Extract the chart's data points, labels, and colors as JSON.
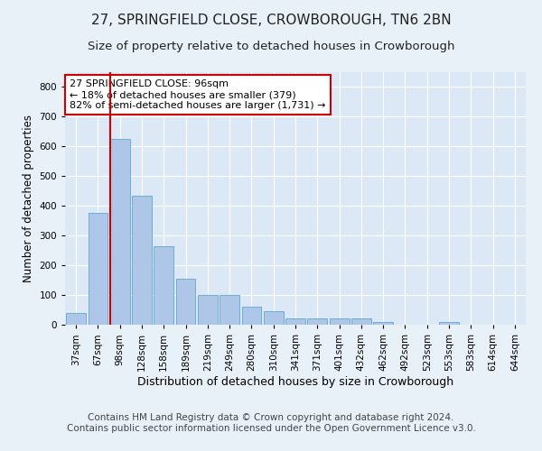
{
  "title": "27, SPRINGFIELD CLOSE, CROWBOROUGH, TN6 2BN",
  "subtitle": "Size of property relative to detached houses in Crowborough",
  "xlabel": "Distribution of detached houses by size in Crowborough",
  "ylabel": "Number of detached properties",
  "bar_labels": [
    "37sqm",
    "67sqm",
    "98sqm",
    "128sqm",
    "158sqm",
    "189sqm",
    "219sqm",
    "249sqm",
    "280sqm",
    "310sqm",
    "341sqm",
    "371sqm",
    "401sqm",
    "432sqm",
    "462sqm",
    "492sqm",
    "523sqm",
    "553sqm",
    "583sqm",
    "614sqm",
    "644sqm"
  ],
  "bar_values": [
    40,
    375,
    625,
    435,
    265,
    155,
    100,
    100,
    60,
    45,
    20,
    20,
    20,
    20,
    10,
    0,
    0,
    10,
    0,
    0,
    0
  ],
  "bar_color": "#aec6e8",
  "bar_edge_color": "#6baed6",
  "property_line_bin": 2,
  "annotation_text": "27 SPRINGFIELD CLOSE: 96sqm\n← 18% of detached houses are smaller (379)\n82% of semi-detached houses are larger (1,731) →",
  "annotation_box_color": "#ffffff",
  "annotation_box_edge_color": "#cc0000",
  "property_line_color": "#cc0000",
  "background_color": "#e8f0f8",
  "plot_background_color": "#dce8f5",
  "grid_color": "#ffffff",
  "ylim": [
    0,
    850
  ],
  "yticks": [
    0,
    100,
    200,
    300,
    400,
    500,
    600,
    700,
    800
  ],
  "footer": "Contains HM Land Registry data © Crown copyright and database right 2024.\nContains public sector information licensed under the Open Government Licence v3.0.",
  "title_fontsize": 11,
  "subtitle_fontsize": 9.5,
  "xlabel_fontsize": 9,
  "ylabel_fontsize": 8.5,
  "footer_fontsize": 7.5,
  "tick_fontsize": 7.5,
  "annotation_fontsize": 8
}
